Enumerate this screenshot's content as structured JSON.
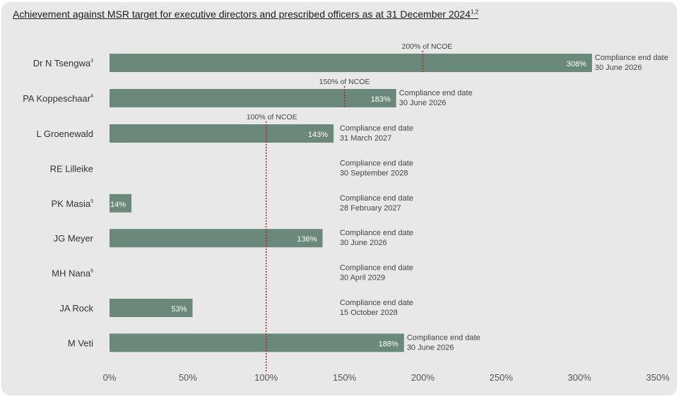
{
  "title": "Achievement against MSR target for executive directors and prescribed officers as at 31 December 2024",
  "title_superscript": "1,2",
  "colors": {
    "bar": "#6b897a",
    "reference_line": "#b22222",
    "background": "#e8e8e8"
  },
  "chart_data": {
    "type": "bar",
    "orientation": "horizontal",
    "title": "Achievement against MSR target for executive directors and prescribed officers as at 31 December 2024",
    "xlim": [
      0,
      350
    ],
    "xticks": [
      "0%",
      "50%",
      "100%",
      "150%",
      "200%",
      "250%",
      "300%",
      "350%"
    ],
    "xtick_values": [
      0,
      50,
      100,
      150,
      200,
      250,
      300,
      350
    ],
    "categories": [
      {
        "name": "Dr N Tsengwa",
        "sup": "3",
        "value": 308,
        "label": "308%",
        "note1": "Compliance end date",
        "note2": "30 June 2026",
        "ref_value": 200,
        "ref_label": "200% of NCOE"
      },
      {
        "name": "PA Koppeschaar",
        "sup": "4",
        "value": 183,
        "label": "183%",
        "note1": "Compliance end date",
        "note2": "30 June 2026",
        "ref_value": 150,
        "ref_label": "150% of NCOE"
      },
      {
        "name": "L Groenewald",
        "sup": "",
        "value": 143,
        "label": "143%",
        "note1": "Compliance end date",
        "note2": "31 March 2027",
        "ref_value": 100,
        "ref_label": "100% of NCOE"
      },
      {
        "name": "RE Lilleike",
        "sup": "",
        "value": 0,
        "label": "",
        "note1": "Compliance end date",
        "note2": "30 September 2028",
        "ref_value": 100,
        "ref_label": ""
      },
      {
        "name": "PK Masia",
        "sup": "5",
        "value": 14,
        "label": "14%",
        "note1": "Compliance end date",
        "note2": "28 February 2027",
        "ref_value": 100,
        "ref_label": ""
      },
      {
        "name": "JG Meyer",
        "sup": "",
        "value": 136,
        "label": "136%",
        "note1": "Compliance end date",
        "note2": "30 June 2026",
        "ref_value": 100,
        "ref_label": ""
      },
      {
        "name": "MH Nana",
        "sup": "6",
        "value": 0,
        "label": "",
        "note1": "Compliance end date",
        "note2": "30 April 2029",
        "ref_value": 100,
        "ref_label": ""
      },
      {
        "name": "JA Rock",
        "sup": "",
        "value": 53,
        "label": "53%",
        "note1": "Compliance end date",
        "note2": "15 October 2028",
        "ref_value": 100,
        "ref_label": ""
      },
      {
        "name": "M Veti",
        "sup": "",
        "value": 188,
        "label": "188%",
        "note1": "Compliance end date",
        "note2": "30 June 2026",
        "ref_value": 100,
        "ref_label": ""
      }
    ]
  }
}
